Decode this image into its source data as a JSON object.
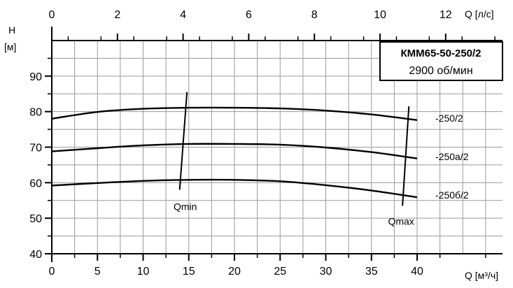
{
  "chart_data": {
    "type": "line",
    "title": "КММ65-50-250/2",
    "subtitle": "2900 об/мин",
    "y_axis": {
      "label": "Н",
      "unit": "[м]",
      "range": [
        40,
        100
      ],
      "ticks": [
        "40",
        "50",
        "60",
        "70",
        "80",
        "90"
      ]
    },
    "x_axis_bottom": {
      "label": "Q [м³/ч]",
      "range": [
        0,
        40
      ],
      "ticks": [
        "0",
        "5",
        "10",
        "15",
        "20",
        "25",
        "30",
        "35",
        "40"
      ]
    },
    "x_axis_top": {
      "label": "Q [л/с]",
      "range": [
        0,
        12
      ],
      "ticks": [
        "0",
        "2",
        "4",
        "6",
        "8",
        "10",
        "12"
      ]
    },
    "grid": true,
    "series": [
      {
        "name": "-250/2",
        "x": [
          0,
          5,
          10,
          15,
          20,
          25,
          30,
          35,
          40
        ],
        "y": [
          78,
          79.9,
          80.8,
          81.1,
          81.1,
          80.9,
          80.3,
          79.2,
          77.6
        ]
      },
      {
        "name": "-250а/2",
        "x": [
          0,
          5,
          10,
          15,
          20,
          25,
          30,
          35,
          40
        ],
        "y": [
          68.8,
          69.7,
          70.5,
          70.9,
          70.9,
          70.7,
          69.9,
          68.6,
          66.8
        ]
      },
      {
        "name": "-250б/2",
        "x": [
          0,
          5,
          10,
          15,
          20,
          25,
          30,
          35,
          40
        ],
        "y": [
          59.2,
          59.9,
          60.5,
          60.8,
          60.8,
          60.4,
          59.3,
          57.8,
          55.9
        ]
      }
    ],
    "annotations": [
      {
        "text": "Qmin",
        "line": {
          "x": [
            14,
            14.8
          ],
          "y": [
            58,
            85.5
          ]
        }
      },
      {
        "text": "Qmax",
        "line": {
          "x": [
            38.4,
            39.1
          ],
          "y": [
            53.5,
            81.5
          ]
        }
      }
    ]
  }
}
